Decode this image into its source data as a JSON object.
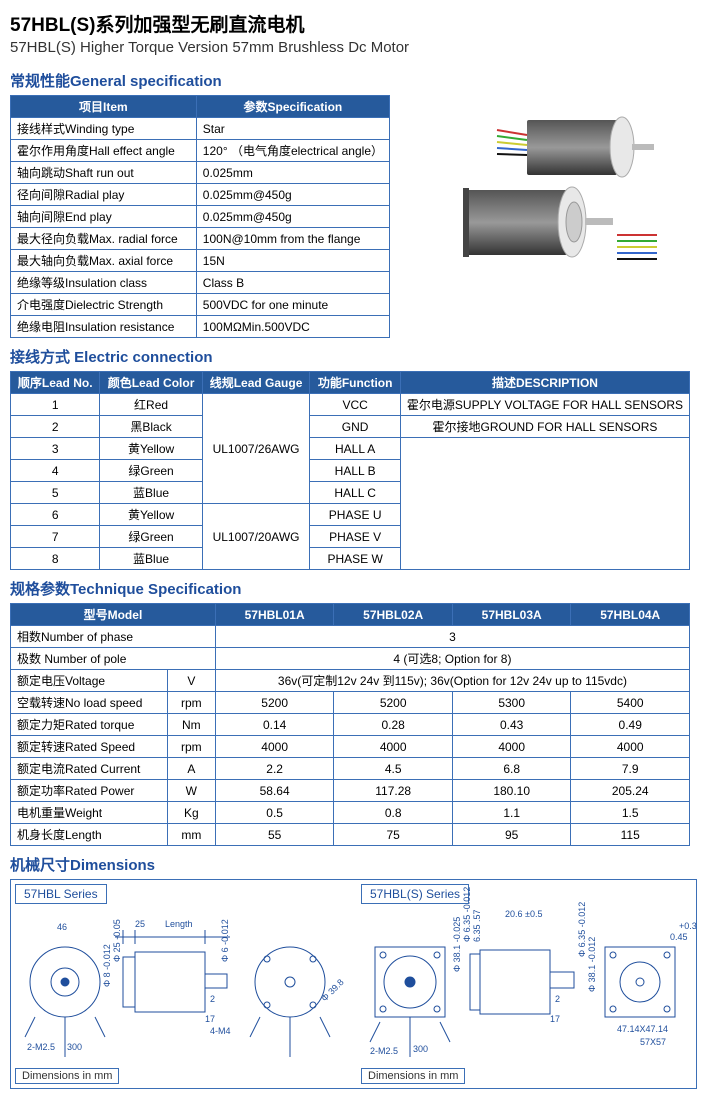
{
  "title_cn": "57HBL(S)系列加强型无刷直流电机",
  "title_en": "57HBL(S) Higher Torque Version 57mm Brushless Dc Motor",
  "sec1_h": "常规性能General specification",
  "sec2_h": "接线方式   Electric connection",
  "sec3_h": "规格参数Technique Specification",
  "sec4_h": "机械尺寸Dimensions",
  "colors": {
    "blue_header": "#265a9c",
    "blue_text": "#1f4e9c",
    "border": "#3b6fb6"
  },
  "t1": {
    "h_item": "项目Item",
    "h_spec": "参数Specification",
    "rows": [
      {
        "k": "接线样式Winding type",
        "v": "Star"
      },
      {
        "k": "霍尔作用角度Hall effect angle",
        "v": "120° （电气角度electrical angle）"
      },
      {
        "k": "轴向跳动Shaft run out",
        "v": "0.025mm"
      },
      {
        "k": "径向间隙Radial play",
        "v": "0.025mm@450g"
      },
      {
        "k": "轴向间隙End play",
        "v": "0.025mm@450g"
      },
      {
        "k": "最大径向负载Max. radial force",
        "v": "100N@10mm    from the flange"
      },
      {
        "k": "最大轴向负载Max. axial force",
        "v": "15N"
      },
      {
        "k": "绝缘等级Insulation class",
        "v": "Class B"
      },
      {
        "k": "介电强度Dielectric Strength",
        "v": "500VDC for one minute"
      },
      {
        "k": "绝缘电阻Insulation resistance",
        "v": "100MΩMin.500VDC"
      }
    ]
  },
  "t2": {
    "h_no": "顺序Lead No.",
    "h_color": "颜色Lead Color",
    "h_gauge": "线规Lead Gauge",
    "h_func": "功能Function",
    "h_desc": "描述DESCRIPTION",
    "gauge1": "UL1007/26AWG",
    "gauge2": "UL1007/20AWG",
    "desc1": "霍尔电源SUPPLY VOLTAGE FOR HALL SENSORS",
    "desc2": "霍尔接地GROUND FOR HALL SENSORS",
    "rows": [
      {
        "no": "1",
        "color": "红Red",
        "func": "VCC"
      },
      {
        "no": "2",
        "color": "黑Black",
        "func": "GND"
      },
      {
        "no": "3",
        "color": "黄Yellow",
        "func": "HALL A"
      },
      {
        "no": "4",
        "color": "绿Green",
        "func": "HALL B"
      },
      {
        "no": "5",
        "color": "蓝Blue",
        "func": "HALL C"
      },
      {
        "no": "6",
        "color": "黄Yellow",
        "func": "PHASE U"
      },
      {
        "no": "7",
        "color": "绿Green",
        "func": "PHASE V"
      },
      {
        "no": "8",
        "color": "蓝Blue",
        "func": "PHASE W"
      }
    ]
  },
  "t3": {
    "h_model": "型号Model",
    "models": [
      "57HBL01A",
      "57HBL02A",
      "57HBL03A",
      "57HBL04A"
    ],
    "row_phase": {
      "label": "相数Number of phase",
      "span": "3"
    },
    "row_pole": {
      "label": "极数 Number of pole",
      "span": "4 (可选8; Option for 8)"
    },
    "row_volt": {
      "label": "额定电压Voltage",
      "unit": "V",
      "span": "36v(可定制12v 24v 到115v); 36v(Option for 12v 24v up to 115vdc)"
    },
    "rows": [
      {
        "label": "空载转速No load speed",
        "unit": "rpm",
        "v": [
          "5200",
          "5200",
          "5300",
          "5400"
        ]
      },
      {
        "label": "额定力矩Rated torque",
        "unit": "Nm",
        "v": [
          "0.14",
          "0.28",
          "0.43",
          "0.49"
        ]
      },
      {
        "label": "额定转速Rated Speed",
        "unit": "rpm",
        "v": [
          "4000",
          "4000",
          "4000",
          "4000"
        ]
      },
      {
        "label": "额定电流Rated Current",
        "unit": "A",
        "v": [
          "2.2",
          "4.5",
          "6.8",
          "7.9"
        ]
      },
      {
        "label": "额定功率Rated Power",
        "unit": "W",
        "v": [
          "58.64",
          "117.28",
          "180.10",
          "205.24"
        ]
      },
      {
        "label": "电机重量Weight",
        "unit": "Kg",
        "v": [
          "0.5",
          "0.8",
          "1.1",
          "1.5"
        ]
      },
      {
        "label": "机身长度Length",
        "unit": "mm",
        "v": [
          "55",
          "75",
          "95",
          "115"
        ]
      }
    ]
  },
  "dim": {
    "series1": "57HBL  Series",
    "series2": "57HBL(S) Series",
    "footer1": "Dimensions in mm",
    "footer2": "Dimensions in mm",
    "labels": [
      "46",
      "25",
      "Length",
      "Φ 8 -0.012",
      "Φ 25 -0.05",
      "Φ 6 -0.012",
      "17",
      "2",
      "4-M4",
      "2-M2.5",
      "300",
      "Φ 38.1 -0.025",
      "Φ 6.35 -0.012",
      "20.6 ±0.5",
      "Φ 6.35 -0.012",
      "Φ 38.1 -0.012",
      "0.45",
      "+0.3",
      "57X57",
      "47.14X47.14",
      "2-M2.5",
      "17",
      "2",
      "300",
      "6.35 .57",
      "Φ 39.8"
    ]
  }
}
